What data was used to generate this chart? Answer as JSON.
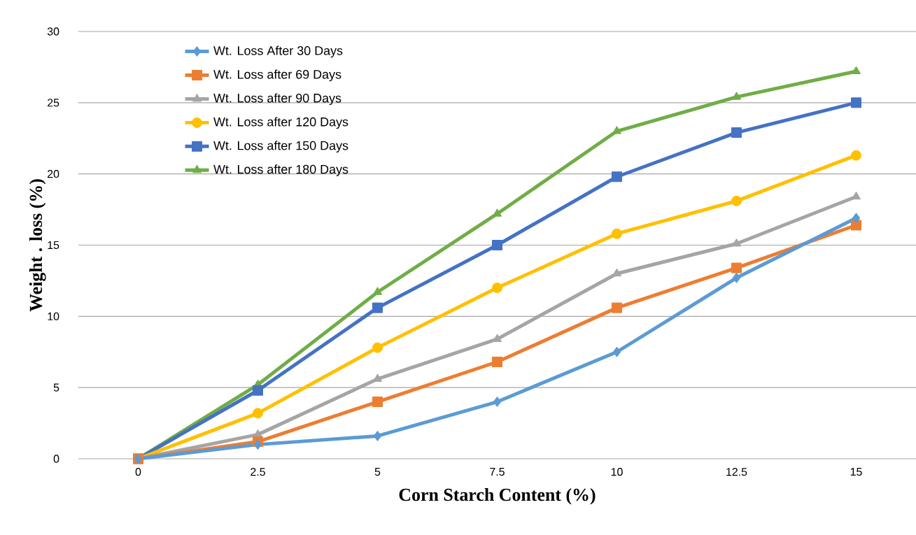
{
  "chart_data": {
    "type": "line",
    "xlabel": "Corn Starch Content (%)",
    "ylabel": "Weight . loss (%)",
    "categories": [
      "0",
      "2.5",
      "5",
      "7.5",
      "10",
      "12.5",
      "15"
    ],
    "series": [
      {
        "name": "Wt.  Loss  After 30 Days",
        "color": "#5b9bd5",
        "marker": "diamond",
        "values": [
          0,
          1.0,
          1.6,
          4.0,
          7.5,
          12.7,
          16.9
        ]
      },
      {
        "name": "Wt.  Loss after 69 Days",
        "color": "#ed7d31",
        "marker": "square",
        "values": [
          0,
          1.2,
          4.0,
          6.8,
          10.6,
          13.4,
          16.4
        ]
      },
      {
        "name": "Wt. Loss after 90 Days",
        "color": "#a5a5a5",
        "marker": "triangle",
        "values": [
          0,
          1.7,
          5.6,
          8.4,
          13.0,
          15.1,
          18.4
        ]
      },
      {
        "name": "Wt.  Loss after 120 Days",
        "color": "#ffc000",
        "marker": "circle",
        "values": [
          0,
          3.2,
          7.8,
          12.0,
          15.8,
          18.1,
          21.3
        ]
      },
      {
        "name": "Wt. Loss after 150 Days",
        "color": "#4472c4",
        "marker": "square",
        "values": [
          0,
          4.8,
          10.6,
          15.0,
          19.8,
          22.9,
          25.0
        ]
      },
      {
        "name": "Wt. Loss after 180 Days",
        "color": "#70ad47",
        "marker": "triangle",
        "values": [
          0,
          5.2,
          11.7,
          17.2,
          23.0,
          25.4,
          27.2
        ]
      }
    ],
    "ylim": [
      0,
      30
    ],
    "yticks": [
      0,
      5,
      10,
      15,
      20,
      25,
      30
    ],
    "grid": "y",
    "legend": "top left"
  }
}
